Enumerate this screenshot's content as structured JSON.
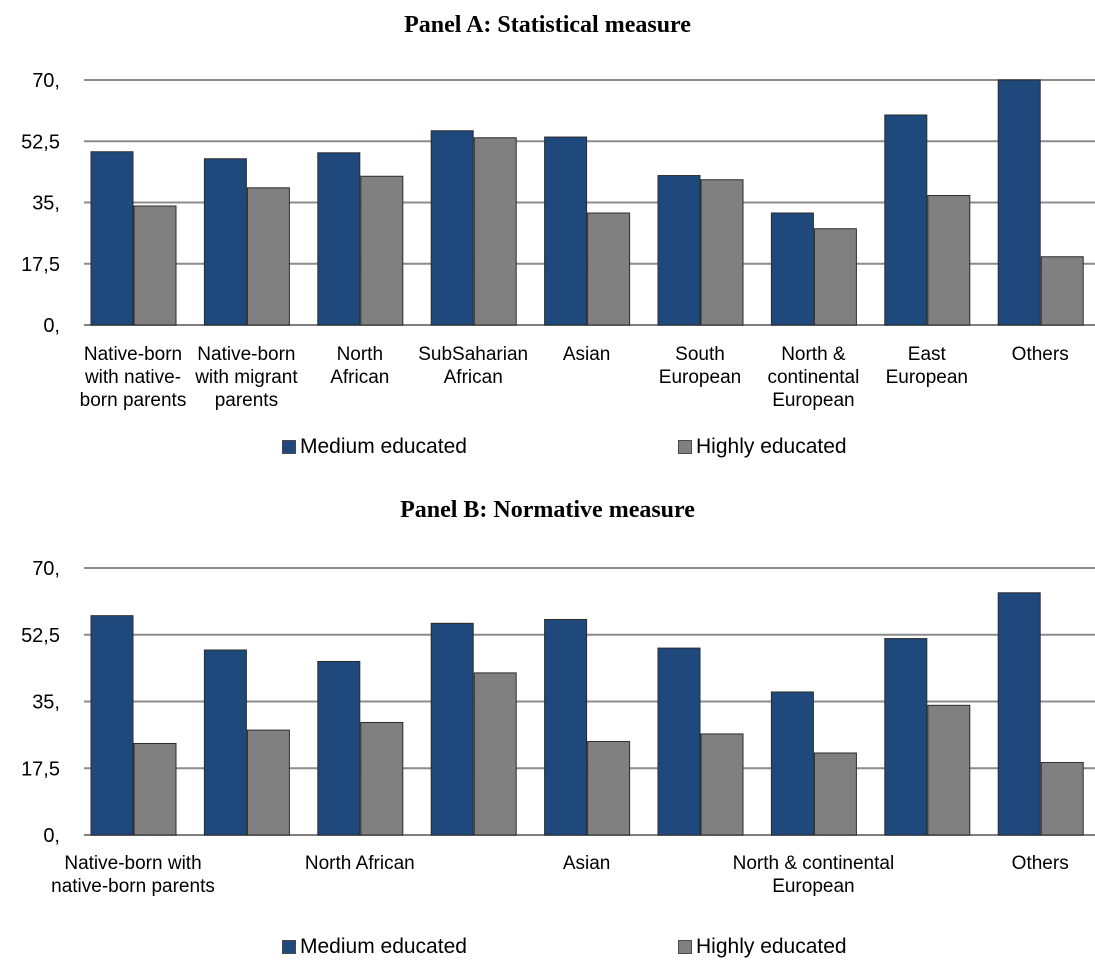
{
  "chart_data": [
    {
      "type": "bar",
      "title": "Panel A: Statistical measure",
      "categories": [
        [
          "Native-born",
          "with native-",
          "born parents"
        ],
        [
          "Native-born",
          "with migrant",
          "parents"
        ],
        [
          "North",
          "African"
        ],
        [
          "SubSaharian",
          "African"
        ],
        [
          "Asian"
        ],
        [
          "South",
          "European"
        ],
        [
          "North &",
          "continental",
          "European"
        ],
        [
          "East",
          "European"
        ],
        [
          "Others"
        ]
      ],
      "series": [
        {
          "name": "Medium educated",
          "color": "#1f497d",
          "values": [
            49.5,
            47.5,
            49.2,
            55.5,
            53.7,
            42.7,
            32.0,
            60.0,
            70.0
          ]
        },
        {
          "name": "Highly educated",
          "color": "#808080",
          "values": [
            34.0,
            39.2,
            42.5,
            53.5,
            32.0,
            41.5,
            27.5,
            37.0,
            19.5
          ]
        }
      ],
      "yticks": [
        "0,",
        "17,5",
        "35,",
        "52,5",
        "70,"
      ],
      "ylim": [
        0,
        70
      ],
      "legend": "bottom"
    },
    {
      "type": "bar",
      "title": "Panel B: Normative measure",
      "categories": [
        [
          "Native-born with",
          "native-born parents"
        ],
        [],
        [
          "North African"
        ],
        [],
        [
          "Asian"
        ],
        [],
        [
          "North & continental",
          "European"
        ],
        [],
        [
          "Others"
        ]
      ],
      "series": [
        {
          "name": "Medium educated",
          "color": "#1f497d",
          "values": [
            57.5,
            48.5,
            45.5,
            55.5,
            56.5,
            49.0,
            37.5,
            51.5,
            63.5
          ]
        },
        {
          "name": "Highly educated",
          "color": "#808080",
          "values": [
            24.0,
            27.5,
            29.5,
            42.5,
            24.5,
            26.5,
            21.5,
            34.0,
            19.0
          ]
        }
      ],
      "yticks": [
        "0,",
        "17,5",
        "35,",
        "52,5",
        "70,"
      ],
      "ylim": [
        0,
        70
      ],
      "legend": "bottom"
    }
  ]
}
